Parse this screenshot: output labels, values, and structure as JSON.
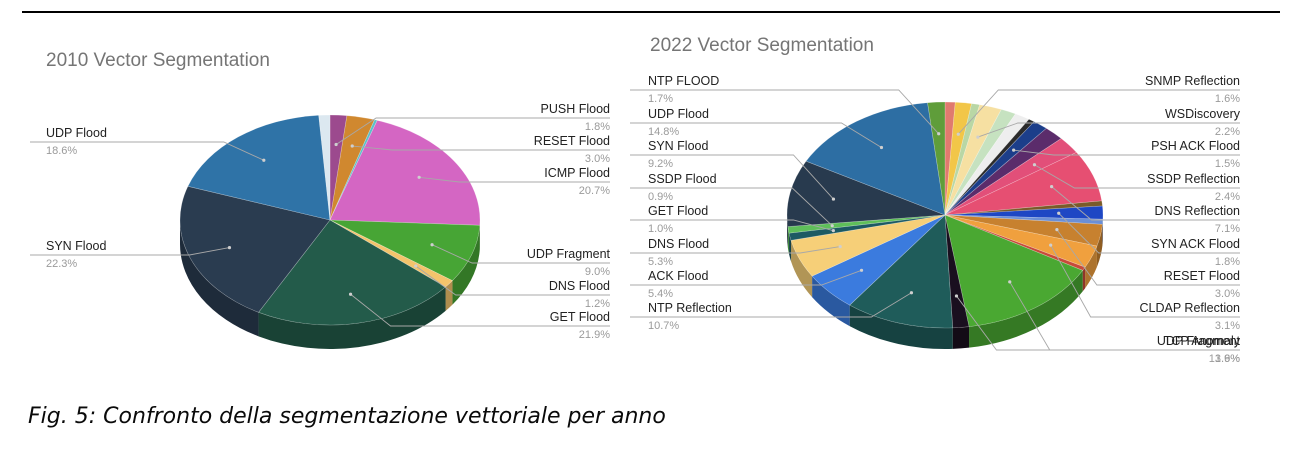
{
  "caption": "Fig. 5: Confronto della segmentazione vettoriale per anno",
  "chart_data": [
    {
      "type": "pie",
      "title": "2010 Vector Segmentation",
      "slices": [
        {
          "label": "PUSH Flood",
          "value": 1.8,
          "value_label": "1.8%",
          "color": "#9c4a8e"
        },
        {
          "label": "RESET Flood",
          "value": 3.0,
          "value_label": "3.0%",
          "color": "#d0882f"
        },
        {
          "label": "",
          "value": 0.3,
          "value_label": "",
          "color": "#5bc0c8"
        },
        {
          "label": "ICMP Flood",
          "value": 20.7,
          "value_label": "20.7%",
          "color": "#d466c3"
        },
        {
          "label": "UDP Fragment",
          "value": 9.0,
          "value_label": "9.0%",
          "color": "#47a535"
        },
        {
          "label": "DNS Flood",
          "value": 1.2,
          "value_label": "1.2%",
          "color": "#f3c46c"
        },
        {
          "label": "GET Flood",
          "value": 21.9,
          "value_label": "21.9%",
          "color": "#235b4a"
        },
        {
          "label": "SYN Flood",
          "value": 22.3,
          "value_label": "22.3%",
          "color": "#2a3c50"
        },
        {
          "label": "UDP Flood",
          "value": 18.6,
          "value_label": "18.6%",
          "color": "#2f73a7"
        },
        {
          "label": "",
          "value": 1.2,
          "value_label": "",
          "color": "#dce8f0"
        }
      ]
    },
    {
      "type": "pie",
      "title": "2022 Vector Segmentation",
      "slices": [
        {
          "label": "",
          "value": 1.0,
          "value_label": "",
          "color": "#e07a6e"
        },
        {
          "label": "SNMP Reflection",
          "value": 1.6,
          "value_label": "1.6%",
          "color": "#f2c648"
        },
        {
          "label": "",
          "value": 0.8,
          "value_label": "",
          "color": "#b9d7a5"
        },
        {
          "label": "WSDiscovery",
          "value": 2.2,
          "value_label": "2.2%",
          "color": "#f6e0a2"
        },
        {
          "label": "",
          "value": 1.5,
          "value_label": "",
          "color": "#c6e2c0"
        },
        {
          "label": "",
          "value": 1.5,
          "value_label": "",
          "color": "#eeeeee"
        },
        {
          "label": "",
          "value": 0.6,
          "value_label": "",
          "color": "#2b2b2b"
        },
        {
          "label": "PSH ACK Flood",
          "value": 1.5,
          "value_label": "1.5%",
          "color": "#1c3e8a"
        },
        {
          "label": "",
          "value": 2.0,
          "value_label": "",
          "color": "#5b2c6b"
        },
        {
          "label": "SSDP Reflection",
          "value": 2.4,
          "value_label": "2.4%",
          "color": "#e24f79"
        },
        {
          "label": "DNS Reflection",
          "value": 7.1,
          "value_label": "7.1%",
          "color": "#e64f72"
        },
        {
          "label": "",
          "value": 0.7,
          "value_label": "",
          "color": "#7a5b2a"
        },
        {
          "label": "SYN ACK Flood",
          "value": 1.8,
          "value_label": "1.8%",
          "color": "#1e47c4"
        },
        {
          "label": "",
          "value": 0.7,
          "value_label": "",
          "color": "#6b8fd6"
        },
        {
          "label": "RESET Flood",
          "value": 3.0,
          "value_label": "3.0%",
          "color": "#c7812f"
        },
        {
          "label": "CLDAP Reflection",
          "value": 3.1,
          "value_label": "3.1%",
          "color": "#f0a03e"
        },
        {
          "label": "",
          "value": 0.5,
          "value_label": "",
          "color": "#c74a3a"
        },
        {
          "label": "UDP Fragment",
          "value": 13.9,
          "value_label": "13.9%",
          "color": "#4aa832"
        },
        {
          "label": "TCP Anomaly",
          "value": 1.6,
          "value_label": "1.6%",
          "color": "#1a0f1f"
        },
        {
          "label": "NTP Reflection",
          "value": 10.7,
          "value_label": "10.7%",
          "color": "#1f5c5a"
        },
        {
          "label": "ACK Flood",
          "value": 5.4,
          "value_label": "5.4%",
          "color": "#3b7bde"
        },
        {
          "label": "DNS Flood",
          "value": 5.3,
          "value_label": "5.3%",
          "color": "#f6cf78"
        },
        {
          "label": "GET Flood",
          "value": 1.0,
          "value_label": "1.0%",
          "color": "#1d5a63"
        },
        {
          "label": "SSDP Flood",
          "value": 0.9,
          "value_label": "0.9%",
          "color": "#5fbf5a"
        },
        {
          "label": "SYN Flood",
          "value": 9.2,
          "value_label": "9.2%",
          "color": "#283a4e"
        },
        {
          "label": "UDP Flood",
          "value": 14.8,
          "value_label": "14.8%",
          "color": "#2d6ea3"
        },
        {
          "label": "NTP FLOOD",
          "value": 1.7,
          "value_label": "1.7%",
          "color": "#5f9d3a"
        }
      ]
    }
  ]
}
